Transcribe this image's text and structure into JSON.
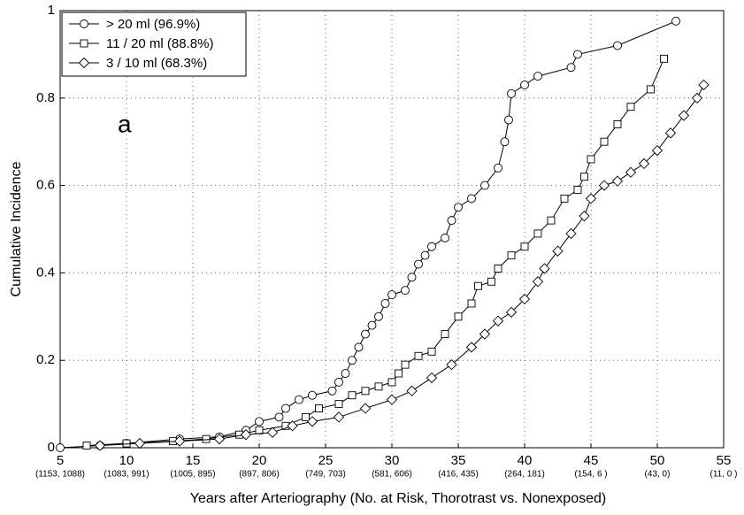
{
  "chart_data": {
    "type": "line",
    "xlabel": "Years after Arteriography (No. at Risk, Thorotrast vs. Nonexposed)",
    "ylabel": "Cumulative Incidence",
    "annotation": "a",
    "xlim": [
      5,
      55
    ],
    "ylim": [
      0,
      1
    ],
    "xticks": [
      5,
      10,
      15,
      20,
      25,
      30,
      35,
      40,
      45,
      50,
      55
    ],
    "risk_labels": [
      "(1153, 1088)",
      "(1083, 991)",
      "(1005, 895)",
      "(897, 806)",
      "(749, 703)",
      "(581, 606)",
      "(416, 435)",
      "(264, 181)",
      "(154, 6 )",
      "(43, 0)",
      "(11, 0 )"
    ],
    "yticks": [
      0,
      0.2,
      0.4,
      0.6,
      0.8,
      1
    ],
    "grid": true,
    "legend": "upper left",
    "series": [
      {
        "name": "> 20 ml (96.9%)",
        "color": "#000000",
        "marker": "circle",
        "x": [
          5,
          8,
          10,
          14,
          17,
          19,
          20,
          21.5,
          22,
          23,
          24,
          25.5,
          26,
          26.5,
          27,
          27.5,
          28,
          28.5,
          29,
          29.5,
          30,
          31,
          31.5,
          32,
          32.5,
          33,
          34,
          34.5,
          35,
          36,
          37,
          38,
          38.5,
          38.8,
          39,
          40,
          41,
          43.5,
          44,
          47,
          51.4
        ],
        "values": [
          0,
          0.005,
          0.01,
          0.02,
          0.025,
          0.04,
          0.06,
          0.07,
          0.09,
          0.11,
          0.12,
          0.13,
          0.15,
          0.17,
          0.2,
          0.23,
          0.26,
          0.28,
          0.3,
          0.33,
          0.35,
          0.36,
          0.39,
          0.42,
          0.44,
          0.46,
          0.48,
          0.52,
          0.55,
          0.57,
          0.6,
          0.64,
          0.7,
          0.75,
          0.81,
          0.83,
          0.85,
          0.87,
          0.9,
          0.92,
          0.976
        ]
      },
      {
        "name": "11 / 20 ml (88.8%)",
        "color": "#000000",
        "marker": "square",
        "x": [
          7,
          10,
          13.5,
          16,
          18.5,
          20,
          22,
          23.5,
          24.5,
          26,
          27,
          28,
          29,
          30,
          30.5,
          31,
          32,
          33,
          34,
          35,
          36,
          36.5,
          37.5,
          38,
          39,
          40,
          41,
          42,
          43,
          44,
          44.5,
          45,
          46,
          47,
          48,
          49.5,
          50.5
        ],
        "values": [
          0.005,
          0.01,
          0.015,
          0.02,
          0.03,
          0.04,
          0.05,
          0.07,
          0.09,
          0.1,
          0.12,
          0.13,
          0.14,
          0.15,
          0.17,
          0.19,
          0.21,
          0.22,
          0.26,
          0.3,
          0.33,
          0.37,
          0.38,
          0.41,
          0.44,
          0.46,
          0.49,
          0.52,
          0.57,
          0.59,
          0.62,
          0.66,
          0.7,
          0.74,
          0.78,
          0.82,
          0.89
        ]
      },
      {
        "name": "3 / 10 ml (68.3%)",
        "color": "#000000",
        "marker": "diamond",
        "x": [
          8,
          11,
          14,
          17,
          19,
          21,
          22.5,
          24,
          26,
          28,
          30,
          31.5,
          33,
          34.5,
          36,
          37,
          38,
          39,
          40,
          41,
          41.5,
          42.5,
          43.5,
          44.5,
          45,
          46,
          47,
          48,
          49,
          50,
          51,
          52,
          53,
          53.5
        ],
        "values": [
          0.005,
          0.01,
          0.015,
          0.02,
          0.03,
          0.035,
          0.05,
          0.06,
          0.07,
          0.09,
          0.11,
          0.13,
          0.16,
          0.19,
          0.23,
          0.26,
          0.29,
          0.31,
          0.34,
          0.38,
          0.41,
          0.45,
          0.49,
          0.53,
          0.57,
          0.6,
          0.61,
          0.63,
          0.65,
          0.68,
          0.72,
          0.76,
          0.8,
          0.83
        ]
      }
    ]
  }
}
